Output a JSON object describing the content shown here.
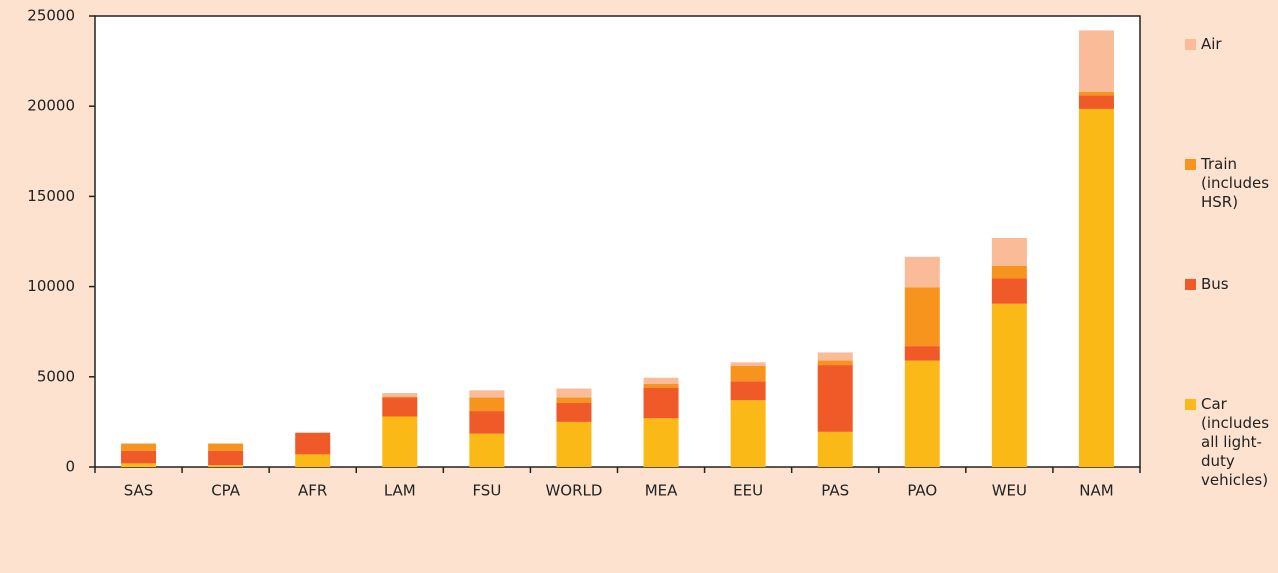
{
  "chart_data": {
    "type": "stacked_bar",
    "categories": [
      "SAS",
      "CPA",
      "AFR",
      "LAM",
      "FSU",
      "WORLD",
      "MEA",
      "EEU",
      "PAS",
      "PAO",
      "WEU",
      "NAM"
    ],
    "series": [
      {
        "name": "Car (includes all light-duty vehicles)",
        "color": "#fbb917",
        "values": [
          200,
          100,
          700,
          2800,
          1850,
          2500,
          2700,
          3700,
          1950,
          5900,
          9050,
          19850
        ]
      },
      {
        "name": "Bus",
        "color": "#f05a28",
        "values": [
          700,
          800,
          1200,
          1050,
          1250,
          1050,
          1700,
          1050,
          3700,
          800,
          1400,
          750
        ]
      },
      {
        "name": "Train (includes HSR)",
        "color": "#f7941e",
        "values": [
          400,
          400,
          0,
          50,
          750,
          300,
          200,
          850,
          250,
          3250,
          700,
          200
        ]
      },
      {
        "name": "Air",
        "color": "#f9bb98",
        "values": [
          0,
          0,
          0,
          200,
          400,
          500,
          350,
          200,
          450,
          1700,
          1550,
          3400
        ]
      }
    ],
    "ylim": [
      0,
      25000
    ],
    "yticks": [
      0,
      5000,
      10000,
      15000,
      20000,
      25000
    ]
  }
}
